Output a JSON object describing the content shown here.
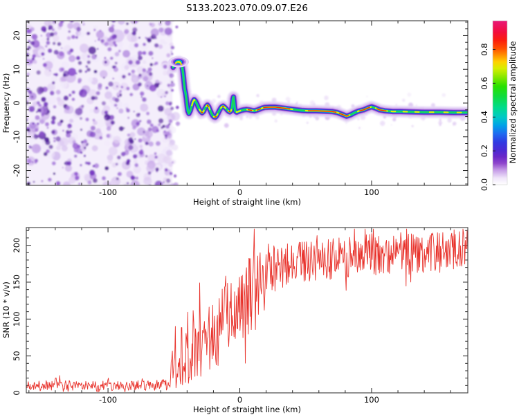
{
  "title": "S133.2023.070.09.07.E26",
  "colors": {
    "background": "#ffffff",
    "frame": "#4a4a4a",
    "tick": "#222222",
    "snr_line": "#e8312a",
    "text": "#000000"
  },
  "chart_data": [
    {
      "type": "heatmap",
      "title": "S133.2023.070.09.07.E26",
      "xlabel": "Height of straight line (km)",
      "ylabel": "Frequency (Hz)",
      "xlim": [
        -162,
        173
      ],
      "ylim": [
        -24.4,
        24.4
      ],
      "x_ticks": [
        -100,
        0,
        100
      ],
      "x_tick_labels": [
        "-100",
        "0",
        "100"
      ],
      "x_minor_step": 20,
      "y_ticks": [
        -20,
        -10,
        0,
        10,
        20
      ],
      "y_tick_labels": [
        "-20",
        "-10",
        "0",
        "10",
        "20"
      ],
      "y_minor_step": 2,
      "grid": false,
      "colorbar": {
        "label": "Normalized spectral amplitude",
        "ticks": [
          0.0,
          0.2,
          0.4,
          0.6,
          0.8
        ],
        "tick_labels": [
          "0.0",
          "0.2",
          "0.4",
          "0.6",
          "0.8"
        ],
        "vmin": 0.0,
        "vmax": 0.97,
        "stops": [
          [
            0.0,
            "#ffffff"
          ],
          [
            0.04,
            "#f0e6fa"
          ],
          [
            0.09,
            "#c49ae6"
          ],
          [
            0.13,
            "#8f46cc"
          ],
          [
            0.17,
            "#6a28c8"
          ],
          [
            0.21,
            "#4b2ad4"
          ],
          [
            0.26,
            "#2f3ae2"
          ],
          [
            0.31,
            "#1e6af0"
          ],
          [
            0.36,
            "#00a0e8"
          ],
          [
            0.41,
            "#00c8c8"
          ],
          [
            0.47,
            "#00dc8c"
          ],
          [
            0.54,
            "#10dc3c"
          ],
          [
            0.6,
            "#28e000"
          ],
          [
            0.66,
            "#8ce800"
          ],
          [
            0.71,
            "#d8ee00"
          ],
          [
            0.75,
            "#ffd000"
          ],
          [
            0.79,
            "#ff9000"
          ],
          [
            0.83,
            "#ff5000"
          ],
          [
            0.88,
            "#fb1e0c"
          ],
          [
            0.93,
            "#f30d3c"
          ],
          [
            1.0,
            "#e81878"
          ]
        ]
      },
      "noise_field": {
        "x_range_km": [
          -162,
          -49.5
        ],
        "wash": "#f4eefb",
        "light_palette": [
          "#f0e8fa",
          "#e4d4f4",
          "#d4bcee",
          "#c3a1e6"
        ],
        "dark_palette": [
          "#a678da",
          "#8d50cf",
          "#7433c0",
          "#5c22a8",
          "#4f1d98"
        ],
        "light_count": 270,
        "dark_count": 430,
        "seed": 7
      },
      "trace": {
        "points": [
          [
            -50.6,
            10.6
          ],
          [
            -49.4,
            11.5
          ],
          [
            -48,
            12.1
          ],
          [
            -46.4,
            12.3
          ],
          [
            -44.9,
            11.9
          ],
          [
            -43.8,
            10.9
          ],
          [
            -43,
            8.8
          ],
          [
            -42.4,
            6.4
          ],
          [
            -41.8,
            4.2
          ],
          [
            -41.2,
            3
          ],
          [
            -40.6,
            1.4
          ],
          [
            -40,
            -0.6
          ],
          [
            -39.4,
            -2.4
          ],
          [
            -38.6,
            -3.1
          ],
          [
            -37.6,
            -2.3
          ],
          [
            -36.6,
            -1
          ],
          [
            -35.6,
            0.3
          ],
          [
            -34.6,
            1
          ],
          [
            -33.6,
            0.6
          ],
          [
            -32.6,
            -0.2
          ],
          [
            -31.6,
            -1.1
          ],
          [
            -30.6,
            -1.9
          ],
          [
            -29.6,
            -2.5
          ],
          [
            -28.6,
            -2.9
          ],
          [
            -27.6,
            -2.5
          ],
          [
            -26.6,
            -1.7
          ],
          [
            -25.6,
            -1
          ],
          [
            -24.6,
            -0.6
          ],
          [
            -23.6,
            -1.1
          ],
          [
            -22.6,
            -2.1
          ],
          [
            -21.6,
            -3
          ],
          [
            -20.6,
            -3.7
          ],
          [
            -19.6,
            -4.1
          ],
          [
            -18.6,
            -4.2
          ],
          [
            -17.6,
            -3.8
          ],
          [
            -16.6,
            -3.1
          ],
          [
            -15.6,
            -2.3
          ],
          [
            -14.6,
            -1.6
          ],
          [
            -13.6,
            -1.1
          ],
          [
            -12.6,
            -0.9
          ],
          [
            -11.6,
            -1.2
          ],
          [
            -10.6,
            -1.6
          ],
          [
            -9.6,
            -2
          ],
          [
            -8.6,
            -2.4
          ],
          [
            -7.6,
            -2.6
          ],
          [
            -6.6,
            -2.3
          ],
          [
            -5.8,
            -1
          ],
          [
            -5.2,
            1.2
          ],
          [
            -4.8,
            1.8
          ],
          [
            -4.3,
            0.4
          ],
          [
            -3.9,
            -1.4
          ],
          [
            -3.3,
            -2.4
          ],
          [
            -2.3,
            -2.7
          ],
          [
            -1,
            -2.5
          ],
          [
            1,
            -2.2
          ],
          [
            3,
            -2
          ],
          [
            5,
            -1.9
          ],
          [
            7,
            -2
          ],
          [
            9,
            -2.2
          ],
          [
            11,
            -2.3
          ],
          [
            13,
            -2.1
          ],
          [
            15,
            -1.8
          ],
          [
            17,
            -1.5
          ],
          [
            19,
            -1.3
          ],
          [
            23,
            -1.2
          ],
          [
            27,
            -1.2
          ],
          [
            31,
            -1.4
          ],
          [
            35,
            -1.6
          ],
          [
            39,
            -1.8
          ],
          [
            43,
            -2
          ],
          [
            47,
            -2.2
          ],
          [
            52,
            -2.3
          ],
          [
            58,
            -2.3
          ],
          [
            64,
            -2.4
          ],
          [
            70,
            -2.5
          ],
          [
            74,
            -2.8
          ],
          [
            78,
            -3.4
          ],
          [
            81,
            -3.9
          ],
          [
            84,
            -3.5
          ],
          [
            87,
            -2.9
          ],
          [
            90,
            -2.4
          ],
          [
            94,
            -2
          ],
          [
            97,
            -1.5
          ],
          [
            100,
            -1.1
          ],
          [
            103,
            -1.5
          ],
          [
            106,
            -2
          ],
          [
            110,
            -2.3
          ],
          [
            116,
            -2.5
          ],
          [
            122,
            -2.5
          ],
          [
            130,
            -2.6
          ],
          [
            140,
            -2.7
          ],
          [
            152,
            -2.7
          ],
          [
            162,
            -2.8
          ],
          [
            173,
            -2.8
          ]
        ],
        "layers": [
          [
            "#e6d7f6",
            17
          ],
          [
            "#c79ae8",
            11
          ],
          [
            "#9250d2",
            8
          ],
          [
            "#5a23c8",
            6.2
          ],
          [
            "#2d3fe0",
            4.8
          ],
          [
            "#00b4e0",
            3.6
          ],
          [
            "#19d758",
            2.6
          ]
        ],
        "yellow": "#e8f000",
        "red": "#ff2800",
        "yellow_segments": [
          [
            -48.6,
            -44.4
          ],
          [
            -36.4,
            -34.2
          ],
          [
            -30.6,
            -27.2
          ],
          [
            -25.6,
            -22.8
          ],
          [
            -19.8,
            -16.8
          ],
          [
            -14.4,
            -10.8
          ],
          [
            -8.8,
            -6.4
          ],
          [
            -2.5,
            0.5
          ],
          [
            5.5,
            10
          ],
          [
            12.5,
            16.5
          ],
          [
            16.5,
            40
          ],
          [
            50,
            74
          ],
          [
            74.5,
            83.5
          ],
          [
            89.5,
            99.5
          ],
          [
            103,
            112
          ],
          [
            115,
            118
          ],
          [
            124,
            127
          ],
          [
            133,
            136
          ],
          [
            144,
            147
          ],
          [
            155,
            158
          ],
          [
            165,
            168
          ]
        ],
        "red_segments": [
          [
            -29.4,
            -28.3
          ],
          [
            -24.7,
            -23.7
          ],
          [
            -18.9,
            -17.9
          ],
          [
            -13.1,
            -12.1
          ],
          [
            -8.2,
            -7.3
          ],
          [
            6.5,
            9
          ],
          [
            13.2,
            15.8
          ],
          [
            18,
            38
          ],
          [
            52,
            73
          ],
          [
            75.5,
            82.5
          ],
          [
            91,
            98.5
          ],
          [
            104,
            111
          ]
        ],
        "start_blob_km": -46.4,
        "start_blob_hz": 12.2,
        "speckle_palette": [
          "#ecdff8",
          "#dfcaf3",
          "#d0b2ec"
        ],
        "speckle_count": 170,
        "speckle_seed": 11
      }
    },
    {
      "type": "line",
      "xlabel": "Height of straight line (km)",
      "ylabel": "SNR (10 * v/v)",
      "xlim": [
        -162,
        173
      ],
      "ylim": [
        0,
        224
      ],
      "x_ticks": [
        -100,
        0,
        100
      ],
      "x_tick_labels": [
        "-100",
        "0",
        "100"
      ],
      "x_minor_step": 20,
      "y_ticks": [
        0,
        50,
        100,
        150,
        200
      ],
      "y_tick_labels": [
        "0",
        "50",
        "100",
        "150",
        "200"
      ],
      "y_minor_step": 10,
      "grid": false,
      "series": [
        {
          "name": "SNR",
          "color": "#e8312a",
          "sample_step_km": 0.45,
          "noise_seed": 21,
          "profile_km_mean_amp": [
            [
              -162,
              10,
              7
            ],
            [
              -130,
              10,
              7
            ],
            [
              -100,
              10,
              7
            ],
            [
              -75,
              10,
              7
            ],
            [
              -58,
              11,
              8
            ],
            [
              -53,
              12,
              10
            ],
            [
              -51.5,
              40,
              38
            ],
            [
              -50,
              62,
              55
            ],
            [
              -48.5,
              42,
              42
            ],
            [
              -47,
              26,
              24
            ],
            [
              -45.5,
              58,
              52
            ],
            [
              -44,
              46,
              46
            ],
            [
              -42.5,
              30,
              28
            ],
            [
              -41,
              56,
              52
            ],
            [
              -39.5,
              36,
              36
            ],
            [
              -38,
              26,
              24
            ],
            [
              -36.5,
              46,
              42
            ],
            [
              -34,
              60,
              46
            ],
            [
              -31,
              66,
              46
            ],
            [
              -28,
              70,
              46
            ],
            [
              -25,
              73,
              48
            ],
            [
              -22,
              78,
              50
            ],
            [
              -19,
              85,
              50
            ],
            [
              -16,
              88,
              52
            ],
            [
              -13,
              92,
              55
            ],
            [
              -10,
              95,
              55
            ],
            [
              -7,
              100,
              57
            ],
            [
              -4,
              105,
              56
            ],
            [
              -1,
              110,
              55
            ],
            [
              2,
              118,
              52
            ],
            [
              5,
              124,
              52
            ],
            [
              8,
              130,
              56
            ],
            [
              11,
              128,
              62
            ],
            [
              14,
              142,
              48
            ],
            [
              17,
              150,
              42
            ],
            [
              20,
              155,
              40
            ],
            [
              24,
              162,
              36
            ],
            [
              28,
              168,
              33
            ],
            [
              34,
              172,
              30
            ],
            [
              40,
              175,
              29
            ],
            [
              48,
              177,
              28
            ],
            [
              56,
              178,
              28
            ],
            [
              64,
              180,
              28
            ],
            [
              72,
              182,
              28
            ],
            [
              80,
              184,
              28
            ],
            [
              90,
              186,
              29
            ],
            [
              100,
              188,
              30
            ],
            [
              110,
              187,
              30
            ],
            [
              120,
              189,
              30
            ],
            [
              130,
              190,
              30
            ],
            [
              140,
              190,
              30
            ],
            [
              150,
              191,
              29
            ],
            [
              160,
              193,
              28
            ],
            [
              173,
              196,
              26
            ]
          ]
        }
      ]
    }
  ]
}
